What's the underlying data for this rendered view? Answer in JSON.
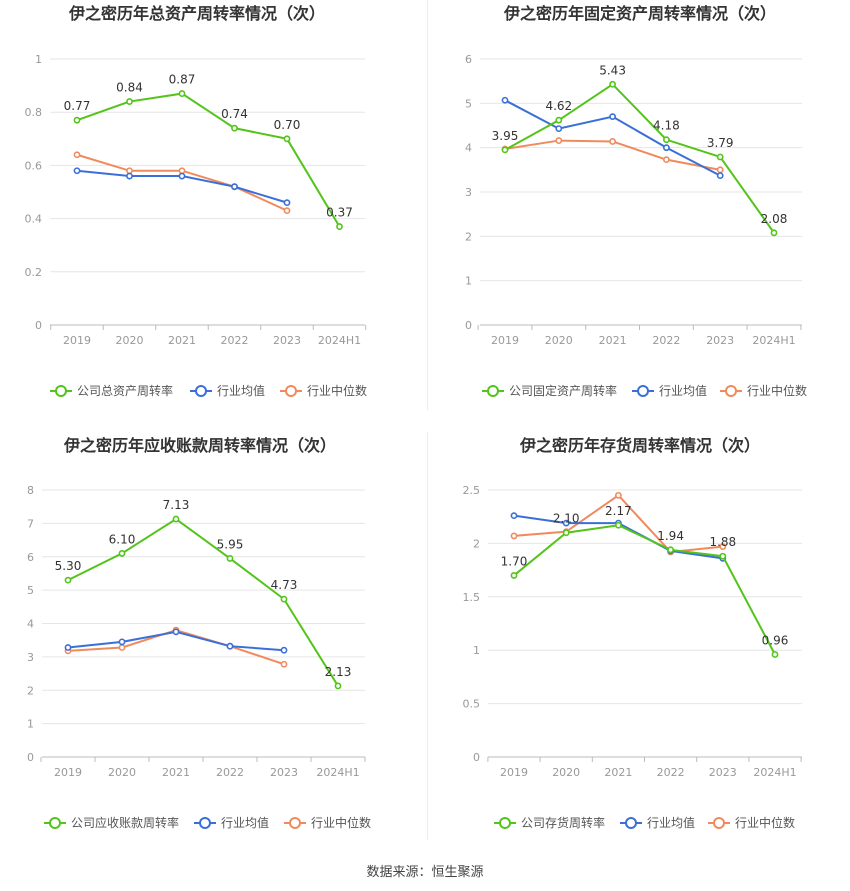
{
  "source": "数据来源：恒生聚源",
  "colors": {
    "company": "#52c41a",
    "avg": "#3a6fd8",
    "median": "#f08a5d",
    "grid": "#e6e6e6",
    "axis": "#999999",
    "title": "#333333"
  },
  "chart_data": [
    {
      "type": "line",
      "title": "伊之密历年总资产周转率情况（次）",
      "categories": [
        "2019",
        "2020",
        "2021",
        "2022",
        "2023",
        "2024H1"
      ],
      "ylim": [
        0,
        1
      ],
      "yticks": [
        "0",
        "0.2",
        "0.4",
        "0.6",
        "0.8",
        "1"
      ],
      "ytick_values": [
        0,
        0.2,
        0.4,
        0.6,
        0.8,
        1
      ],
      "legend_position": "bottom",
      "series": [
        {
          "name": "公司总资产周转率",
          "role": "company",
          "values": [
            0.77,
            0.84,
            0.87,
            0.74,
            0.7,
            0.37
          ],
          "labels": [
            "0.77",
            "0.84",
            "0.87",
            "0.74",
            "0.70",
            "0.37"
          ]
        },
        {
          "name": "行业均值",
          "role": "avg",
          "values": [
            0.58,
            0.56,
            0.56,
            0.52,
            0.46,
            null
          ]
        },
        {
          "name": "行业中位数",
          "role": "median",
          "values": [
            0.64,
            0.58,
            0.58,
            0.52,
            0.43,
            null
          ]
        }
      ]
    },
    {
      "type": "line",
      "title": "伊之密历年固定资产周转率情况（次）",
      "categories": [
        "2019",
        "2020",
        "2021",
        "2022",
        "2023",
        "2024H1"
      ],
      "ylim": [
        0,
        6
      ],
      "yticks": [
        "0",
        "1",
        "2",
        "3",
        "4",
        "5",
        "6"
      ],
      "ytick_values": [
        0,
        1,
        2,
        3,
        4,
        5,
        6
      ],
      "legend_position": "bottom",
      "series": [
        {
          "name": "公司固定资产周转率",
          "role": "company",
          "values": [
            3.95,
            4.62,
            5.43,
            4.18,
            3.79,
            2.08
          ],
          "labels": [
            "3.95",
            "4.62",
            "5.43",
            "4.18",
            "3.79",
            "2.08"
          ]
        },
        {
          "name": "行业均值",
          "role": "avg",
          "values": [
            5.07,
            4.43,
            4.7,
            4.0,
            3.37,
            null
          ]
        },
        {
          "name": "行业中位数",
          "role": "median",
          "values": [
            3.97,
            4.16,
            4.14,
            3.73,
            3.5,
            null
          ]
        }
      ]
    },
    {
      "type": "line",
      "title": "伊之密历年应收账款周转率情况（次）",
      "categories": [
        "2019",
        "2020",
        "2021",
        "2022",
        "2023",
        "2024H1"
      ],
      "ylim": [
        0,
        8
      ],
      "yticks": [
        "0",
        "1",
        "2",
        "3",
        "4",
        "5",
        "6",
        "7",
        "8"
      ],
      "ytick_values": [
        0,
        1,
        2,
        3,
        4,
        5,
        6,
        7,
        8
      ],
      "legend_position": "bottom",
      "series": [
        {
          "name": "公司应收账款周转率",
          "role": "company",
          "values": [
            5.3,
            6.1,
            7.13,
            5.95,
            4.73,
            2.13
          ],
          "labels": [
            "5.30",
            "6.10",
            "7.13",
            "5.95",
            "4.73",
            "2.13"
          ]
        },
        {
          "name": "行业均值",
          "role": "avg",
          "values": [
            3.28,
            3.45,
            3.75,
            3.32,
            3.2,
            null
          ]
        },
        {
          "name": "行业中位数",
          "role": "median",
          "values": [
            3.18,
            3.28,
            3.8,
            3.32,
            2.78,
            null
          ]
        }
      ]
    },
    {
      "type": "line",
      "title": "伊之密历年存货周转率情况（次）",
      "categories": [
        "2019",
        "2020",
        "2021",
        "2022",
        "2023",
        "2024H1"
      ],
      "ylim": [
        0,
        2.5
      ],
      "yticks": [
        "0",
        "0.5",
        "1",
        "1.5",
        "2",
        "2.5"
      ],
      "ytick_values": [
        0,
        0.5,
        1,
        1.5,
        2,
        2.5
      ],
      "legend_position": "bottom",
      "series": [
        {
          "name": "公司存货周转率",
          "role": "company",
          "values": [
            1.7,
            2.1,
            2.17,
            1.94,
            1.88,
            0.96
          ],
          "labels": [
            "1.70",
            "2.10",
            "2.17",
            "1.94",
            "1.88",
            "0.96"
          ]
        },
        {
          "name": "行业均值",
          "role": "avg",
          "values": [
            2.26,
            2.19,
            2.19,
            1.93,
            1.86,
            null
          ]
        },
        {
          "name": "行业中位数",
          "role": "median",
          "values": [
            2.07,
            2.11,
            2.45,
            1.92,
            1.97,
            null
          ]
        }
      ]
    }
  ]
}
